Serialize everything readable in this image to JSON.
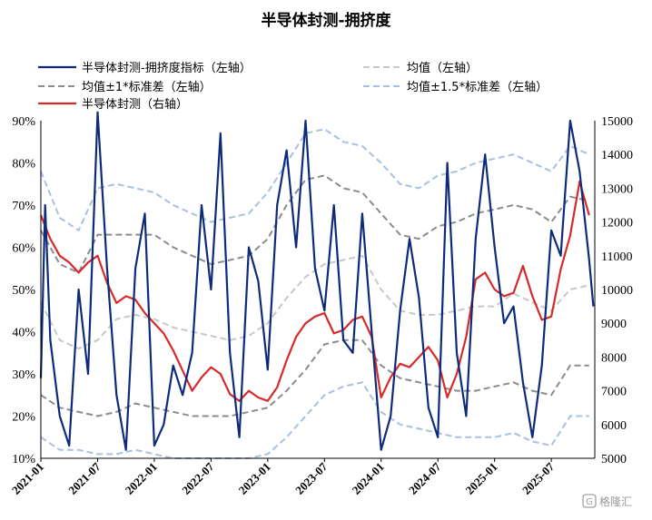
{
  "chart_data": {
    "type": "line",
    "title": "半导体封测-拥挤度",
    "left_axis": {
      "min": 0.1,
      "max": 0.9,
      "ticks": [
        "10%",
        "20%",
        "30%",
        "40%",
        "50%",
        "60%",
        "70%",
        "80%",
        "90%"
      ]
    },
    "right_axis": {
      "min": 5000,
      "max": 15000,
      "ticks": [
        "5000",
        "6000",
        "7000",
        "8000",
        "9000",
        "10000",
        "11000",
        "12000",
        "13000",
        "14000",
        "15000"
      ]
    },
    "x_axis": {
      "start": "2021-01",
      "end": "2025-11",
      "ticks": [
        "2021-01",
        "2021-07",
        "2022-01",
        "2022-07",
        "2023-01",
        "2023-07",
        "2024-01",
        "2024-07",
        "2025-01",
        "2025-07"
      ]
    },
    "legend": [
      {
        "label": "半导体封测-拥挤度指标（左轴）",
        "series": "crowding"
      },
      {
        "label": "均值（左轴）",
        "series": "mean"
      },
      {
        "label": "均值±1*标准差（左轴）",
        "series": "band1"
      },
      {
        "label": "均值±1.5*标准差（左轴）",
        "series": "band15"
      },
      {
        "label": "半导体封测（右轴）",
        "series": "index"
      }
    ],
    "colors": {
      "crowding": "#0d2b7a",
      "mean": "#c8c8c8",
      "band1": "#8c8c8c",
      "band15": "#a9c0e3",
      "index": "#d62a2a"
    },
    "series": [
      {
        "name": "半导体封测-拥挤度指标（左轴）",
        "key": "crowding",
        "axis": "left",
        "x": [
          "2021-01",
          "2021-01",
          "2021-02",
          "2021-03",
          "2021-04",
          "2021-05",
          "2021-06",
          "2021-07",
          "2021-08",
          "2021-09",
          "2021-10",
          "2021-11",
          "2021-12",
          "2022-01",
          "2022-02",
          "2022-03",
          "2022-04",
          "2022-05",
          "2022-06",
          "2022-07",
          "2022-08",
          "2022-09",
          "2022-10",
          "2022-11",
          "2022-12",
          "2023-01",
          "2023-02",
          "2023-03",
          "2023-04",
          "2023-05",
          "2023-06",
          "2023-07",
          "2023-08",
          "2023-09",
          "2023-10",
          "2023-11",
          "2023-12",
          "2024-01",
          "2024-02",
          "2024-03",
          "2024-04",
          "2024-05",
          "2024-06",
          "2024-07",
          "2024-08",
          "2024-09",
          "2024-10",
          "2024-11",
          "2024-12",
          "2025-01",
          "2025-02",
          "2025-03",
          "2025-04",
          "2025-05",
          "2025-06",
          "2025-07",
          "2025-08",
          "2025-09",
          "2025-10",
          "2025-11",
          "2025-11"
        ],
        "y": [
          0.29,
          0.7,
          0.38,
          0.2,
          0.13,
          0.5,
          0.3,
          0.92,
          0.55,
          0.25,
          0.12,
          0.55,
          0.68,
          0.13,
          0.18,
          0.32,
          0.25,
          0.35,
          0.7,
          0.5,
          0.87,
          0.35,
          0.15,
          0.6,
          0.52,
          0.31,
          0.7,
          0.83,
          0.6,
          0.9,
          0.55,
          0.45,
          0.7,
          0.38,
          0.35,
          0.68,
          0.4,
          0.12,
          0.2,
          0.45,
          0.62,
          0.48,
          0.22,
          0.15,
          0.8,
          0.35,
          0.2,
          0.62,
          0.82,
          0.6,
          0.42,
          0.46,
          0.28,
          0.15,
          0.32,
          0.64,
          0.58,
          0.9,
          0.78,
          0.57,
          0.46
        ]
      },
      {
        "name": "均值（左轴）",
        "key": "mean",
        "axis": "left",
        "x": [
          "2021-01",
          "2021-03",
          "2021-05",
          "2021-07",
          "2021-09",
          "2021-11",
          "2022-01",
          "2022-03",
          "2022-05",
          "2022-07",
          "2022-09",
          "2022-11",
          "2023-01",
          "2023-03",
          "2023-05",
          "2023-07",
          "2023-09",
          "2023-11",
          "2024-01",
          "2024-03",
          "2024-05",
          "2024-07",
          "2024-09",
          "2024-11",
          "2025-01",
          "2025-03",
          "2025-05",
          "2025-07",
          "2025-09",
          "2025-11"
        ],
        "y": [
          0.47,
          0.38,
          0.36,
          0.38,
          0.43,
          0.44,
          0.43,
          0.41,
          0.4,
          0.39,
          0.38,
          0.39,
          0.42,
          0.48,
          0.53,
          0.56,
          0.57,
          0.58,
          0.5,
          0.45,
          0.44,
          0.44,
          0.45,
          0.46,
          0.46,
          0.49,
          0.47,
          0.45,
          0.5,
          0.51
        ]
      },
      {
        "name": "均值+1*标准差（左轴）",
        "key": "band1",
        "axis": "left",
        "x": [
          "2021-01",
          "2021-03",
          "2021-05",
          "2021-07",
          "2021-09",
          "2021-11",
          "2022-01",
          "2022-03",
          "2022-05",
          "2022-07",
          "2022-09",
          "2022-11",
          "2023-01",
          "2023-03",
          "2023-05",
          "2023-07",
          "2023-09",
          "2023-11",
          "2024-01",
          "2024-03",
          "2024-05",
          "2024-07",
          "2024-09",
          "2024-11",
          "2025-01",
          "2025-03",
          "2025-05",
          "2025-07",
          "2025-09",
          "2025-11"
        ],
        "y": [
          0.64,
          0.56,
          0.54,
          0.63,
          0.63,
          0.63,
          0.63,
          0.6,
          0.58,
          0.56,
          0.57,
          0.58,
          0.62,
          0.7,
          0.76,
          0.77,
          0.74,
          0.73,
          0.68,
          0.63,
          0.62,
          0.65,
          0.66,
          0.68,
          0.69,
          0.7,
          0.69,
          0.66,
          0.72,
          0.71
        ]
      },
      {
        "name": "均值-1*标准差（左轴）",
        "key": "band1",
        "axis": "left",
        "x": [
          "2021-01",
          "2021-03",
          "2021-05",
          "2021-07",
          "2021-09",
          "2021-11",
          "2022-01",
          "2022-03",
          "2022-05",
          "2022-07",
          "2022-09",
          "2022-11",
          "2023-01",
          "2023-03",
          "2023-05",
          "2023-07",
          "2023-09",
          "2023-11",
          "2024-01",
          "2024-03",
          "2024-05",
          "2024-07",
          "2024-09",
          "2024-11",
          "2025-01",
          "2025-03",
          "2025-05",
          "2025-07",
          "2025-09",
          "2025-11"
        ],
        "y": [
          0.25,
          0.22,
          0.21,
          0.2,
          0.21,
          0.23,
          0.22,
          0.21,
          0.2,
          0.2,
          0.2,
          0.21,
          0.22,
          0.26,
          0.31,
          0.37,
          0.38,
          0.38,
          0.32,
          0.29,
          0.28,
          0.27,
          0.26,
          0.26,
          0.27,
          0.28,
          0.26,
          0.25,
          0.32,
          0.32
        ]
      },
      {
        "name": "均值+1.5*标准差（左轴）",
        "key": "band15",
        "axis": "left",
        "x": [
          "2021-01",
          "2021-03",
          "2021-05",
          "2021-07",
          "2021-09",
          "2021-11",
          "2022-01",
          "2022-03",
          "2022-05",
          "2022-07",
          "2022-09",
          "2022-11",
          "2023-01",
          "2023-03",
          "2023-05",
          "2023-07",
          "2023-09",
          "2023-11",
          "2024-01",
          "2024-03",
          "2024-05",
          "2024-07",
          "2024-09",
          "2024-11",
          "2025-01",
          "2025-03",
          "2025-05",
          "2025-07",
          "2025-09",
          "2025-11"
        ],
        "y": [
          0.78,
          0.67,
          0.64,
          0.74,
          0.75,
          0.74,
          0.73,
          0.7,
          0.68,
          0.66,
          0.67,
          0.68,
          0.73,
          0.8,
          0.87,
          0.88,
          0.85,
          0.84,
          0.8,
          0.75,
          0.74,
          0.77,
          0.78,
          0.8,
          0.81,
          0.82,
          0.8,
          0.78,
          0.84,
          0.82
        ]
      },
      {
        "name": "均值-1.5*标准差（左轴）",
        "key": "band15",
        "axis": "left",
        "x": [
          "2021-01",
          "2021-03",
          "2021-05",
          "2021-07",
          "2021-09",
          "2021-11",
          "2022-01",
          "2022-03",
          "2022-05",
          "2022-07",
          "2022-09",
          "2022-11",
          "2023-01",
          "2023-03",
          "2023-05",
          "2023-07",
          "2023-09",
          "2023-11",
          "2024-01",
          "2024-03",
          "2024-05",
          "2024-07",
          "2024-09",
          "2024-11",
          "2025-01",
          "2025-03",
          "2025-05",
          "2025-07",
          "2025-09",
          "2025-11"
        ],
        "y": [
          0.15,
          0.12,
          0.12,
          0.11,
          0.11,
          0.12,
          0.11,
          0.1,
          0.1,
          0.1,
          0.1,
          0.1,
          0.11,
          0.15,
          0.2,
          0.25,
          0.27,
          0.28,
          0.21,
          0.18,
          0.17,
          0.16,
          0.15,
          0.15,
          0.15,
          0.16,
          0.14,
          0.13,
          0.2,
          0.2
        ]
      },
      {
        "name": "半导体封测（右轴）",
        "key": "index",
        "axis": "right",
        "x": [
          "2021-01",
          "2021-02",
          "2021-03",
          "2021-04",
          "2021-05",
          "2021-06",
          "2021-07",
          "2021-08",
          "2021-09",
          "2021-10",
          "2021-11",
          "2021-12",
          "2022-01",
          "2022-02",
          "2022-03",
          "2022-04",
          "2022-05",
          "2022-06",
          "2022-07",
          "2022-08",
          "2022-09",
          "2022-10",
          "2022-11",
          "2022-12",
          "2023-01",
          "2023-02",
          "2023-03",
          "2023-04",
          "2023-05",
          "2023-06",
          "2023-07",
          "2023-08",
          "2023-09",
          "2023-10",
          "2023-11",
          "2023-12",
          "2024-01",
          "2024-02",
          "2024-03",
          "2024-04",
          "2024-05",
          "2024-06",
          "2024-07",
          "2024-08",
          "2024-09",
          "2024-10",
          "2024-11",
          "2024-12",
          "2025-01",
          "2025-02",
          "2025-03",
          "2025-04",
          "2025-05",
          "2025-06",
          "2025-07",
          "2025-08",
          "2025-09",
          "2025-10",
          "2025-11"
        ],
        "y": [
          12200,
          11500,
          11000,
          10800,
          10500,
          10800,
          11000,
          10200,
          9600,
          9800,
          9700,
          9300,
          9000,
          8700,
          8200,
          7600,
          7000,
          7400,
          7700,
          7500,
          6900,
          6700,
          7000,
          6800,
          6700,
          7100,
          7900,
          8600,
          9000,
          9200,
          9300,
          8700,
          8800,
          9100,
          9200,
          8600,
          6800,
          7400,
          7800,
          7700,
          8000,
          8300,
          7900,
          6800,
          7500,
          8600,
          10300,
          10500,
          10000,
          9800,
          9900,
          10700,
          9800,
          9100,
          9200,
          10600,
          11600,
          13200,
          12200
        ]
      }
    ]
  },
  "watermark": {
    "text": "格隆汇",
    "icon": "glh-logo-icon"
  }
}
